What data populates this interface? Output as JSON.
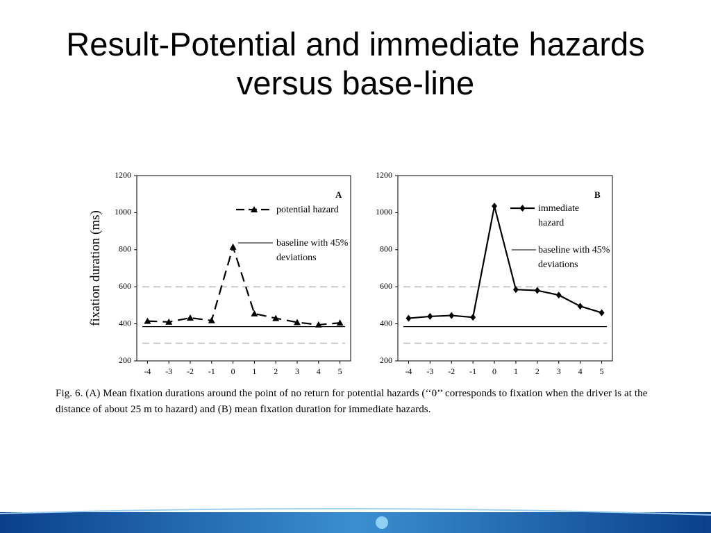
{
  "slide": {
    "title": "Result-Potential and immediate hazards versus base-line",
    "caption": "Fig. 6. (A) Mean fixation durations around the point of no return for potential hazards (‘‘0’’ corresponds to fixation when the driver is at the distance of about 25 m to hazard) and (B) mean fixation duration for immediate hazards."
  },
  "chart_data": [
    {
      "type": "line",
      "panel": "A",
      "ylabel": "fixation duration (ms)",
      "x": [
        -4,
        -3,
        -2,
        -1,
        0,
        1,
        2,
        3,
        4,
        5
      ],
      "xlim": [
        -4.5,
        5.5
      ],
      "xticks": [
        -4,
        -3,
        -2,
        -1,
        0,
        1,
        2,
        3,
        4,
        5
      ],
      "ylim": [
        200,
        1200
      ],
      "yticks": [
        200,
        400,
        600,
        800,
        1000,
        1200
      ],
      "series": [
        {
          "name": "potential hazard",
          "color": "#000000",
          "dashed": true,
          "marker": "triangle",
          "values": [
            415,
            410,
            432,
            418,
            815,
            455,
            430,
            408,
            395,
            405
          ]
        }
      ],
      "baseline": {
        "name": "baseline with 45% deviations",
        "value": 385,
        "deviation_lines": [
          600,
          295
        ]
      }
    },
    {
      "type": "line",
      "panel": "B",
      "x": [
        -4,
        -3,
        -2,
        -1,
        0,
        1,
        2,
        3,
        4,
        5
      ],
      "xlim": [
        -4.5,
        5.5
      ],
      "xticks": [
        -4,
        -3,
        -2,
        -1,
        0,
        1,
        2,
        3,
        4,
        5
      ],
      "ylim": [
        200,
        1200
      ],
      "yticks": [
        200,
        400,
        600,
        800,
        1000,
        1200
      ],
      "series": [
        {
          "name": "immediate hazard",
          "color": "#000000",
          "dashed": false,
          "marker": "diamond",
          "values": [
            430,
            440,
            445,
            435,
            1035,
            585,
            580,
            555,
            495,
            460
          ]
        }
      ],
      "baseline": {
        "name": "baseline with 45% deviations",
        "value": 385,
        "deviation_lines": [
          600,
          295
        ]
      }
    }
  ]
}
